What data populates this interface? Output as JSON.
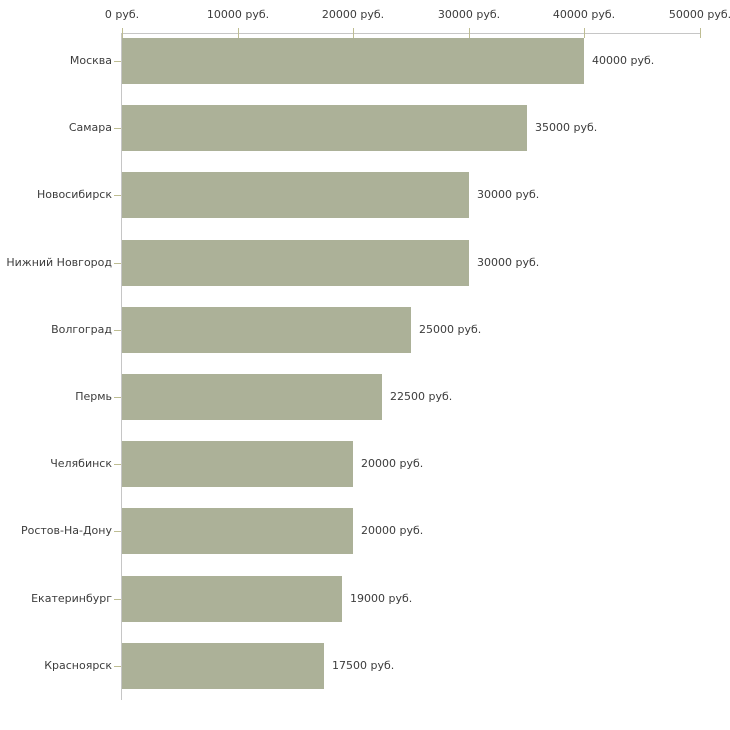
{
  "chart_data": {
    "type": "bar",
    "orientation": "horizontal",
    "title": "",
    "xlabel": "",
    "ylabel": "",
    "grid": false,
    "legend": false,
    "categories": [
      "Москва",
      "Самара",
      "Новосибирск",
      "Нижний Новгород",
      "Волгоград",
      "Пермь",
      "Челябинск",
      "Ростов-На-Дону",
      "Екатеринбург",
      "Красноярск"
    ],
    "values": [
      40000,
      35000,
      30000,
      30000,
      25000,
      22500,
      20000,
      20000,
      19000,
      17500
    ],
    "value_labels": [
      "40000 руб.",
      "35000 руб.",
      "30000 руб.",
      "30000 руб.",
      "25000 руб.",
      "22500 руб.",
      "20000 руб.",
      "20000 руб.",
      "19000 руб.",
      "17500 руб."
    ],
    "xlim": [
      0,
      50000
    ],
    "x_ticks": [
      0,
      10000,
      20000,
      30000,
      40000,
      50000
    ],
    "x_tick_labels": [
      "0 руб.",
      "10000 руб.",
      "20000 руб.",
      "30000 руб.",
      "40000 руб.",
      "50000 руб."
    ],
    "unit": "руб.",
    "colors": {
      "bar": "#acb198",
      "axis_line": "#c6c6c6",
      "tick": "#bebd92",
      "text": "#3c3c3c",
      "background": "#ffffff"
    }
  }
}
